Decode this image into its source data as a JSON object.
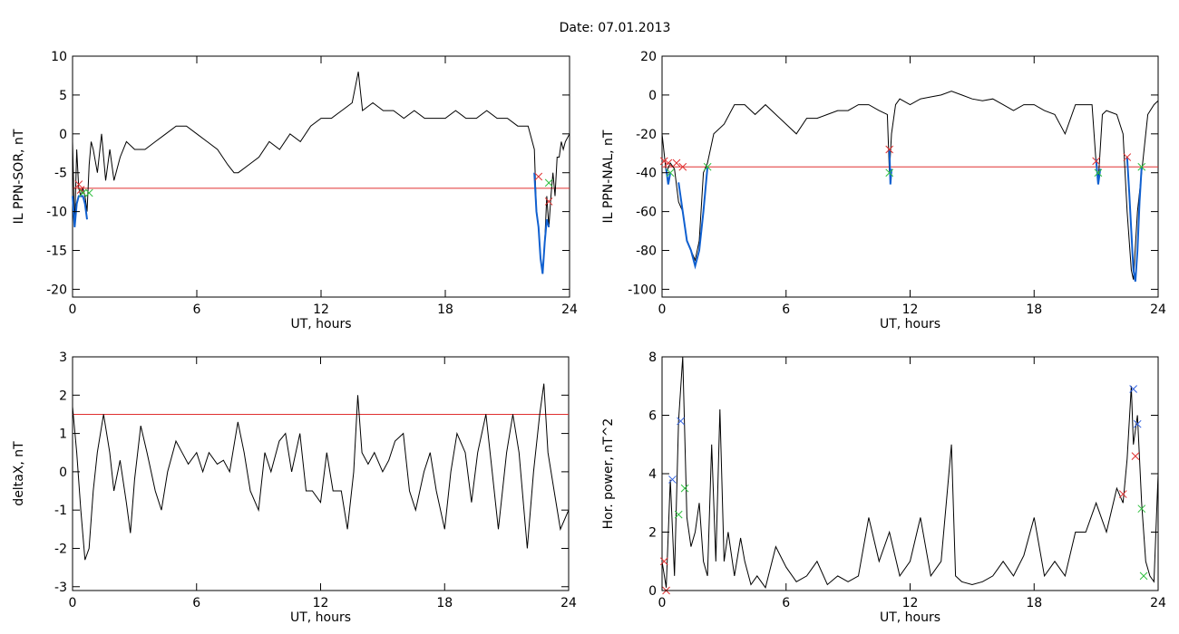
{
  "figure_title": "Date:  07.01.2013",
  "colors": {
    "trace": "#000000",
    "threshold": "#e03030",
    "segment": "#1060d0",
    "mark_red": "#e03030",
    "mark_green": "#30c040",
    "mark_blue": "#3060e0"
  },
  "chart_data": [
    {
      "type": "line",
      "xlabel": "UT, hours",
      "ylabel": "IL PPN-SOR, nT",
      "xlim": [
        0,
        24
      ],
      "ylim": [
        -21,
        10
      ],
      "xticks": [
        0,
        6,
        12,
        18,
        24
      ],
      "yticks": [
        -20,
        -15,
        -10,
        -5,
        0,
        5,
        10
      ],
      "threshold": -7,
      "series": [
        {
          "x": [
            0,
            0.1,
            0.2,
            0.3,
            0.4,
            0.5,
            0.6,
            0.7,
            0.8,
            0.9,
            1.0,
            1.2,
            1.4,
            1.6,
            1.8,
            2.0,
            2.3,
            2.6,
            3.0,
            3.5,
            4.0,
            4.5,
            5.0,
            5.5,
            6.0,
            6.5,
            7.0,
            7.5,
            7.8,
            8.0,
            8.5,
            9.0,
            9.5,
            10.0,
            10.5,
            11.0,
            11.5,
            12.0,
            12.5,
            13.0,
            13.5,
            13.8,
            14.0,
            14.5,
            15.0,
            15.5,
            16.0,
            16.5,
            17.0,
            17.5,
            18.0,
            18.5,
            19.0,
            19.5,
            20.0,
            20.5,
            21.0,
            21.5,
            22.0,
            22.3,
            22.4,
            22.5,
            22.6,
            22.7,
            22.8,
            22.9,
            23.0,
            23.1,
            23.2,
            23.3,
            23.4,
            23.5,
            23.6,
            23.7,
            23.8,
            24.0
          ],
          "y": [
            -1,
            -12,
            -2,
            -7,
            -8,
            -7,
            -8,
            -10,
            -4,
            -1,
            -2,
            -5,
            0,
            -6,
            -2,
            -6,
            -3,
            -1,
            -2,
            -2,
            -1,
            0,
            1,
            1,
            0,
            -1,
            -2,
            -4,
            -5,
            -5,
            -4,
            -3,
            -1,
            -2,
            0,
            -1,
            1,
            2,
            2,
            3,
            4,
            8,
            3,
            4,
            3,
            3,
            2,
            3,
            2,
            2,
            2,
            3,
            2,
            2,
            3,
            2,
            2,
            1,
            1,
            -2,
            -10,
            -12,
            -16,
            -18,
            -14,
            -8,
            -12,
            -8,
            -5,
            -8,
            -3,
            -3,
            -1,
            -2,
            -1,
            0
          ]
        }
      ],
      "segments": [
        {
          "x": [
            0,
            0.1,
            0.2,
            0.3,
            0.5,
            0.6,
            0.7
          ],
          "y": [
            -8,
            -12,
            -9,
            -8,
            -8,
            -9,
            -11
          ]
        },
        {
          "x": [
            22.3,
            22.4,
            22.5,
            22.6,
            22.7,
            22.8,
            22.9,
            23.0
          ],
          "y": [
            -5,
            -10,
            -12,
            -16,
            -18,
            -14,
            -11,
            -12
          ]
        }
      ],
      "markers": [
        {
          "x": 0.3,
          "y": -6.5,
          "color": "red"
        },
        {
          "x": 0.4,
          "y": -7.2,
          "color": "red"
        },
        {
          "x": 0.5,
          "y": -7.6,
          "color": "green"
        },
        {
          "x": 0.8,
          "y": -7.6,
          "color": "green"
        },
        {
          "x": 22.5,
          "y": -5.5,
          "color": "red"
        },
        {
          "x": 23.0,
          "y": -8.7,
          "color": "red"
        },
        {
          "x": 23.0,
          "y": -6.3,
          "color": "green"
        }
      ]
    },
    {
      "type": "line",
      "xlabel": "UT, hours",
      "ylabel": "IL PPN-NAL, nT",
      "xlim": [
        0,
        24
      ],
      "ylim": [
        -104,
        20
      ],
      "xticks": [
        0,
        6,
        12,
        18,
        24
      ],
      "yticks": [
        -100,
        -80,
        -60,
        -40,
        -20,
        0,
        20
      ],
      "threshold": -37,
      "series": [
        {
          "x": [
            0,
            0.2,
            0.4,
            0.6,
            0.8,
            1.0,
            1.2,
            1.4,
            1.6,
            1.8,
            2.0,
            2.2,
            2.5,
            3.0,
            3.5,
            4.0,
            4.5,
            5.0,
            5.5,
            6.0,
            6.5,
            7.0,
            7.5,
            8.0,
            8.5,
            9.0,
            9.5,
            10.0,
            10.5,
            10.9,
            11.0,
            11.1,
            11.3,
            11.5,
            12.0,
            12.5,
            13.0,
            13.5,
            14.0,
            14.5,
            15.0,
            15.5,
            16.0,
            16.5,
            17.0,
            17.5,
            18.0,
            18.5,
            19.0,
            19.5,
            20.0,
            20.5,
            20.8,
            21.0,
            21.1,
            21.3,
            21.5,
            22.0,
            22.3,
            22.5,
            22.7,
            22.8,
            23.0,
            23.2,
            23.5,
            23.8,
            24.0
          ],
          "y": [
            -20,
            -40,
            -35,
            -38,
            -55,
            -60,
            -75,
            -80,
            -85,
            -75,
            -40,
            -35,
            -20,
            -15,
            -5,
            -5,
            -10,
            -5,
            -10,
            -15,
            -20,
            -12,
            -12,
            -10,
            -8,
            -8,
            -5,
            -5,
            -8,
            -10,
            -40,
            -20,
            -5,
            -2,
            -5,
            -2,
            -1,
            0,
            2,
            0,
            -2,
            -3,
            -2,
            -5,
            -8,
            -5,
            -5,
            -8,
            -10,
            -20,
            -5,
            -5,
            -5,
            -35,
            -45,
            -10,
            -8,
            -10,
            -20,
            -60,
            -90,
            -95,
            -60,
            -40,
            -10,
            -5,
            -3
          ]
        }
      ],
      "segments": [
        {
          "x": [
            0.2,
            0.3,
            0.4
          ],
          "y": [
            -38,
            -46,
            -40
          ]
        },
        {
          "x": [
            0.8,
            1.0,
            1.2,
            1.4,
            1.6,
            1.8,
            2.0,
            2.2
          ],
          "y": [
            -45,
            -60,
            -75,
            -80,
            -88,
            -80,
            -60,
            -37
          ]
        },
        {
          "x": [
            11.0,
            11.05,
            11.1
          ],
          "y": [
            -28,
            -46,
            -38
          ]
        },
        {
          "x": [
            21.0,
            21.1,
            21.2
          ],
          "y": [
            -33,
            -46,
            -38
          ]
        },
        {
          "x": [
            22.5,
            22.6,
            22.7,
            22.8,
            22.9,
            23.0,
            23.1,
            23.2
          ],
          "y": [
            -32,
            -50,
            -70,
            -90,
            -96,
            -80,
            -55,
            -37
          ]
        }
      ],
      "markers": [
        {
          "x": 0.1,
          "y": -34,
          "color": "red"
        },
        {
          "x": 0.3,
          "y": -35,
          "color": "red"
        },
        {
          "x": 0.7,
          "y": -35,
          "color": "red"
        },
        {
          "x": 1.0,
          "y": -37,
          "color": "red"
        },
        {
          "x": 0.4,
          "y": -40,
          "color": "green"
        },
        {
          "x": 2.2,
          "y": -37,
          "color": "green"
        },
        {
          "x": 11.0,
          "y": -28,
          "color": "red"
        },
        {
          "x": 11.0,
          "y": -40,
          "color": "green"
        },
        {
          "x": 21.0,
          "y": -34,
          "color": "red"
        },
        {
          "x": 21.1,
          "y": -40,
          "color": "green"
        },
        {
          "x": 22.5,
          "y": -32,
          "color": "red"
        },
        {
          "x": 23.2,
          "y": -37,
          "color": "green"
        }
      ]
    },
    {
      "type": "line",
      "xlabel": "UT, hours",
      "ylabel": "deltaX, nT",
      "xlim": [
        0,
        24
      ],
      "ylim": [
        -3.1,
        3
      ],
      "xticks": [
        0,
        6,
        12,
        18,
        24
      ],
      "yticks": [
        -3,
        -2,
        -1,
        0,
        1,
        2,
        3
      ],
      "threshold": 1.5,
      "series": [
        {
          "x": [
            0,
            0.2,
            0.4,
            0.6,
            0.8,
            1.0,
            1.2,
            1.5,
            1.8,
            2.0,
            2.3,
            2.6,
            2.8,
            3.0,
            3.3,
            3.6,
            4.0,
            4.3,
            4.6,
            5.0,
            5.3,
            5.6,
            6.0,
            6.3,
            6.6,
            7.0,
            7.3,
            7.6,
            8.0,
            8.3,
            8.6,
            9.0,
            9.3,
            9.6,
            10.0,
            10.3,
            10.6,
            11.0,
            11.3,
            11.6,
            12.0,
            12.3,
            12.6,
            13.0,
            13.3,
            13.6,
            13.8,
            14.0,
            14.3,
            14.6,
            15.0,
            15.3,
            15.6,
            16.0,
            16.3,
            16.6,
            17.0,
            17.3,
            17.6,
            18.0,
            18.3,
            18.6,
            19.0,
            19.3,
            19.6,
            20.0,
            20.3,
            20.6,
            21.0,
            21.3,
            21.6,
            22.0,
            22.3,
            22.6,
            22.8,
            23.0,
            23.3,
            23.6,
            24.0
          ],
          "y": [
            1.7,
            0.5,
            -1.0,
            -2.3,
            -2.0,
            -0.5,
            0.5,
            1.5,
            0.5,
            -0.5,
            0.3,
            -0.8,
            -1.6,
            -0.2,
            1.2,
            0.5,
            -0.5,
            -1.0,
            0.0,
            0.8,
            0.5,
            0.2,
            0.5,
            0.0,
            0.5,
            0.2,
            0.3,
            0.0,
            1.3,
            0.5,
            -0.5,
            -1.0,
            0.5,
            0.0,
            0.8,
            1.0,
            0.0,
            1.0,
            -0.5,
            -0.5,
            -0.8,
            0.5,
            -0.5,
            -0.5,
            -1.5,
            0.0,
            2.0,
            0.5,
            0.2,
            0.5,
            0.0,
            0.3,
            0.8,
            1.0,
            -0.5,
            -1.0,
            0.0,
            0.5,
            -0.5,
            -1.5,
            0.0,
            1.0,
            0.5,
            -0.8,
            0.5,
            1.5,
            0.0,
            -1.5,
            0.5,
            1.5,
            0.5,
            -2.0,
            0.0,
            1.5,
            2.3,
            0.5,
            -0.5,
            -1.5,
            -1.0
          ]
        }
      ]
    },
    {
      "type": "line",
      "xlabel": "UT, hours",
      "ylabel": "Hor. power, nT^2",
      "xlim": [
        0,
        24
      ],
      "ylim": [
        0,
        8
      ],
      "xticks": [
        0,
        6,
        12,
        18,
        24
      ],
      "yticks": [
        0,
        2,
        4,
        6,
        8
      ],
      "series": [
        {
          "x": [
            0,
            0.2,
            0.4,
            0.6,
            0.8,
            1.0,
            1.2,
            1.4,
            1.6,
            1.8,
            2.0,
            2.2,
            2.4,
            2.6,
            2.8,
            3.0,
            3.2,
            3.5,
            3.8,
            4.0,
            4.3,
            4.6,
            5.0,
            5.5,
            6.0,
            6.5,
            7.0,
            7.5,
            8.0,
            8.5,
            9.0,
            9.5,
            10.0,
            10.5,
            11.0,
            11.5,
            12.0,
            12.5,
            13.0,
            13.5,
            14.0,
            14.2,
            14.5,
            15.0,
            15.5,
            16.0,
            16.5,
            17.0,
            17.5,
            18.0,
            18.5,
            19.0,
            19.5,
            20.0,
            20.5,
            21.0,
            21.5,
            22.0,
            22.3,
            22.5,
            22.7,
            22.8,
            23.0,
            23.2,
            23.4,
            23.6,
            23.8,
            24.0
          ],
          "y": [
            1.0,
            0.1,
            3.8,
            0.5,
            5.8,
            8.0,
            2.5,
            1.5,
            2.0,
            3.0,
            1.0,
            0.5,
            5.0,
            1.0,
            6.2,
            1.0,
            2.0,
            0.5,
            1.8,
            1.0,
            0.2,
            0.5,
            0.1,
            1.5,
            0.8,
            0.3,
            0.5,
            1.0,
            0.2,
            0.5,
            0.3,
            0.5,
            2.5,
            1.0,
            2.0,
            0.5,
            1.0,
            2.5,
            0.5,
            1.0,
            5.0,
            0.5,
            0.3,
            0.2,
            0.3,
            0.5,
            1.0,
            0.5,
            1.2,
            2.5,
            0.5,
            1.0,
            0.5,
            2.0,
            2.0,
            3.0,
            2.0,
            3.5,
            3.0,
            4.5,
            7.0,
            5.0,
            6.0,
            3.0,
            1.0,
            0.5,
            0.3,
            4.0
          ]
        }
      ],
      "markers": [
        {
          "x": 0.1,
          "y": 1.0,
          "color": "red"
        },
        {
          "x": 0.2,
          "y": 0.0,
          "color": "red"
        },
        {
          "x": 0.5,
          "y": 3.8,
          "color": "blue"
        },
        {
          "x": 0.9,
          "y": 5.8,
          "color": "blue"
        },
        {
          "x": 0.8,
          "y": 2.6,
          "color": "green"
        },
        {
          "x": 1.1,
          "y": 3.5,
          "color": "green"
        },
        {
          "x": 22.3,
          "y": 3.3,
          "color": "red"
        },
        {
          "x": 22.8,
          "y": 6.9,
          "color": "blue"
        },
        {
          "x": 23.0,
          "y": 5.7,
          "color": "blue"
        },
        {
          "x": 22.9,
          "y": 4.6,
          "color": "red"
        },
        {
          "x": 23.2,
          "y": 2.8,
          "color": "green"
        },
        {
          "x": 23.3,
          "y": 0.5,
          "color": "green"
        }
      ]
    }
  ]
}
